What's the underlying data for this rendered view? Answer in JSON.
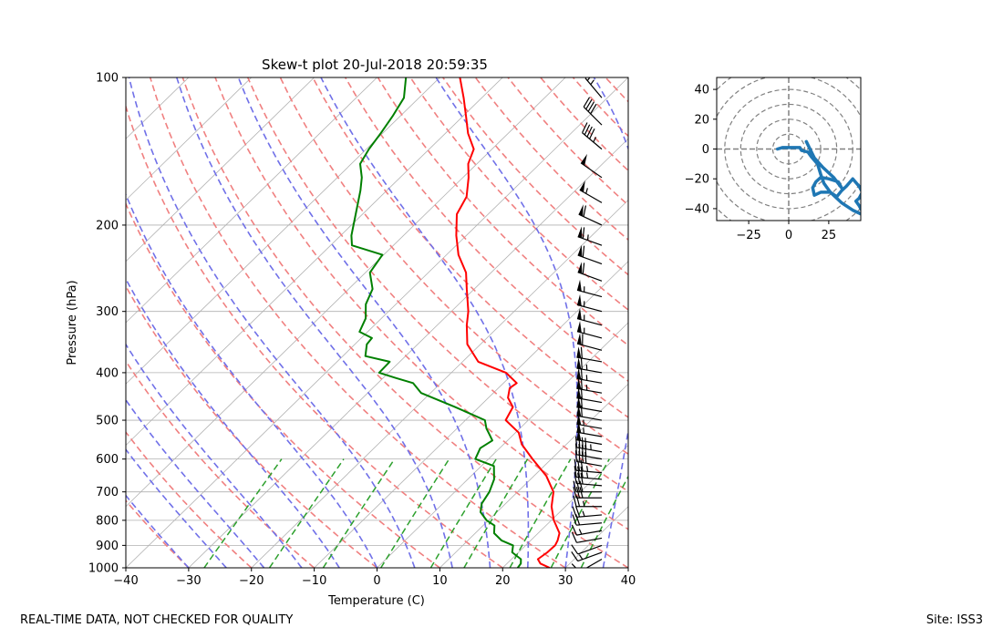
{
  "figure": {
    "footer_left": "REAL-TIME DATA, NOT CHECKED FOR QUALITY",
    "footer_right": "Site: ISS3"
  },
  "chart_data": [
    {
      "type": "line",
      "subtype": "skew-t",
      "title": "Skew-t plot 20-Jul-2018 20:59:35",
      "xlabel": "Temperature (C)",
      "ylabel": "Pressure (hPa)",
      "xlim": [
        -40,
        40
      ],
      "ylim": [
        1000,
        100
      ],
      "y_scale": "log",
      "xticks": [
        -40,
        -30,
        -20,
        -10,
        0,
        10,
        20,
        30,
        40
      ],
      "yticks": [
        1000,
        900,
        800,
        700,
        600,
        500,
        400,
        300,
        200,
        100
      ],
      "grid": true,
      "colors": {
        "temperature": "#ff0000",
        "dewpoint": "#008000",
        "isotherm": "#b0b0b0",
        "dry_adiabat": "#f08080",
        "moist_adiabat": "#7070e8",
        "mixing_ratio": "#2ca02c"
      },
      "series": [
        {
          "key": "temperature",
          "pressure": [
            1000,
            980,
            960,
            930,
            900,
            880,
            850,
            800,
            750,
            700,
            650,
            600,
            560,
            530,
            500,
            470,
            450,
            430,
            420,
            400,
            380,
            350,
            320,
            300,
            270,
            250,
            230,
            210,
            190,
            175,
            160,
            150,
            140,
            130,
            120,
            110,
            100
          ],
          "values": [
            27.5,
            25.3,
            24.2,
            24.6,
            24.7,
            24.3,
            23.4,
            20.4,
            17.8,
            15.7,
            12.0,
            7.0,
            2.9,
            0.5,
            -3.6,
            -4.6,
            -6.9,
            -8.2,
            -7.9,
            -11.3,
            -17.5,
            -22.1,
            -25.3,
            -27.3,
            -31.2,
            -34.0,
            -38.1,
            -41.6,
            -45.0,
            -46.3,
            -49.1,
            -51.4,
            -52.9,
            -56.4,
            -59.5,
            -62.9,
            -66.8
          ]
        },
        {
          "key": "dewpoint",
          "pressure": [
            1000,
            980,
            960,
            930,
            900,
            880,
            850,
            820,
            800,
            770,
            740,
            700,
            660,
            620,
            600,
            570,
            550,
            530,
            520,
            500,
            470,
            440,
            420,
            410,
            400,
            380,
            370,
            350,
            340,
            330,
            310,
            290,
            270,
            250,
            230,
            220,
            210,
            190,
            170,
            160,
            150,
            140,
            130,
            120,
            110,
            100
          ],
          "values": [
            22.4,
            22.2,
            21.5,
            19.0,
            18.0,
            15.4,
            13.0,
            11.8,
            9.7,
            7.4,
            6.2,
            5.5,
            4.2,
            2.0,
            -2.1,
            -3.1,
            -2.4,
            -4.3,
            -5.3,
            -6.9,
            -13.8,
            -21.5,
            -24.4,
            -28.0,
            -31.5,
            -31.6,
            -36.4,
            -38.1,
            -38.3,
            -41.3,
            -42.5,
            -44.8,
            -46.2,
            -49.3,
            -50.2,
            -56.6,
            -58.3,
            -61.1,
            -64.2,
            -66.1,
            -68.6,
            -69.6,
            -70.3,
            -71.2,
            -72.4,
            -75.4
          ]
        }
      ],
      "wind_barbs": {
        "pressure": [
          960,
          930,
          900,
          870,
          840,
          810,
          780,
          750,
          720,
          700,
          680,
          660,
          640,
          620,
          600,
          580,
          560,
          540,
          520,
          500,
          480,
          460,
          440,
          420,
          400,
          380,
          360,
          340,
          320,
          300,
          280,
          260,
          240,
          220,
          200,
          180,
          160,
          140,
          125,
          110,
          100
        ],
        "speed_kt": [
          10,
          15,
          10,
          10,
          15,
          20,
          25,
          25,
          30,
          30,
          30,
          35,
          35,
          40,
          40,
          45,
          50,
          55,
          55,
          60,
          60,
          60,
          65,
          65,
          65,
          60,
          60,
          55,
          55,
          55,
          55,
          60,
          60,
          65,
          60,
          55,
          50,
          45,
          40,
          25,
          20
        ],
        "direction_deg": [
          240,
          250,
          250,
          260,
          260,
          265,
          265,
          270,
          270,
          270,
          275,
          275,
          275,
          280,
          280,
          280,
          280,
          280,
          280,
          280,
          280,
          280,
          280,
          280,
          280,
          280,
          285,
          285,
          285,
          285,
          285,
          290,
          290,
          290,
          295,
          300,
          305,
          310,
          315,
          320,
          325
        ]
      }
    },
    {
      "type": "line",
      "subtype": "hodograph",
      "xlim": [
        -45,
        45
      ],
      "ylim": [
        -48,
        48
      ],
      "xticks": [
        -25,
        0,
        25
      ],
      "yticks": [
        40,
        20,
        0,
        -20,
        -40
      ],
      "rings": [
        10,
        20,
        30,
        40,
        50,
        60
      ],
      "series": [
        {
          "u": [
            -7,
            -4,
            0,
            4,
            7,
            8,
            12,
            14,
            18,
            20,
            22,
            26,
            30,
            33,
            36,
            40,
            44,
            46,
            44,
            42,
            44,
            46,
            48,
            40,
            33,
            26,
            20,
            16,
            15,
            17,
            20,
            25,
            31,
            33,
            28,
            21,
            16,
            11
          ],
          "v": [
            0,
            1,
            1,
            1,
            1,
            -1,
            -2,
            -5,
            -10,
            -17,
            -23,
            -29,
            -32,
            -28,
            -25,
            -20,
            -25,
            -29,
            -33,
            -35,
            -38,
            -42,
            -45,
            -41,
            -36,
            -29,
            -29,
            -31,
            -26,
            -22,
            -19,
            -20,
            -22,
            -26,
            -19,
            -12,
            -6,
            5
          ]
        }
      ]
    }
  ]
}
